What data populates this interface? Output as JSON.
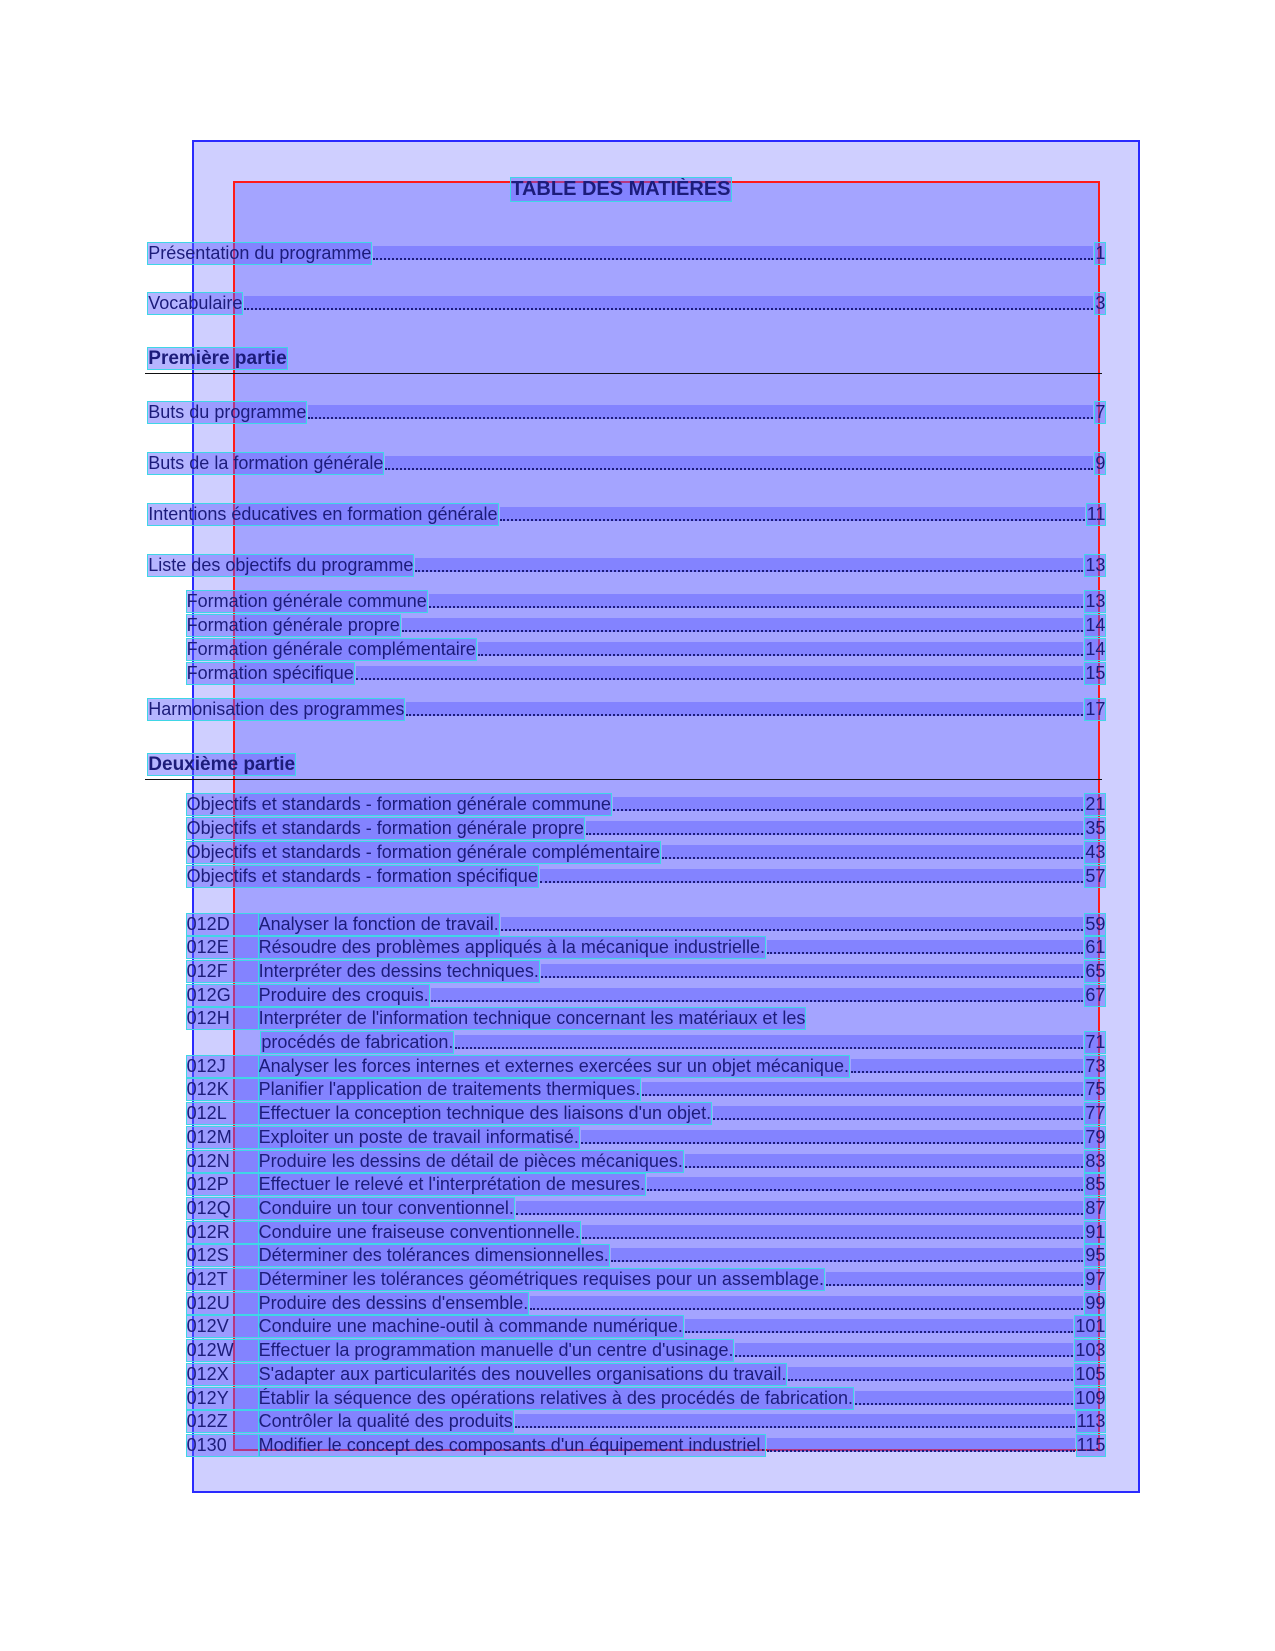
{
  "title": "TABLE DES MATIÈRES",
  "front": [
    {
      "text": "Présentation du programme",
      "page": "1"
    },
    {
      "text": "Vocabulaire",
      "page": "3"
    }
  ],
  "part1": {
    "heading": "Première partie",
    "entries": [
      {
        "text": "Buts du programme",
        "page": "7"
      },
      {
        "text": "Buts de la formation générale",
        "page": "9"
      },
      {
        "text": "Intentions éducatives en formation générale",
        "page": "11"
      },
      {
        "text": "Liste des objectifs du programme",
        "page": "13",
        "subentries": [
          {
            "text": "Formation générale commune",
            "page": "13"
          },
          {
            "text": "Formation générale propre",
            "page": "14"
          },
          {
            "text": "Formation générale complémentaire",
            "page": "14"
          },
          {
            "text": "Formation spécifique",
            "page": "15"
          }
        ]
      },
      {
        "text": "Harmonisation des programmes",
        "page": "17"
      }
    ]
  },
  "part2": {
    "heading": "Deuxième partie",
    "standards": [
      {
        "text": "Objectifs et standards - formation générale commune",
        "page": "21"
      },
      {
        "text": "Objectifs et standards - formation générale propre",
        "page": "35"
      },
      {
        "text": "Objectifs et standards - formation générale complémentaire",
        "page": "43"
      },
      {
        "text": "Objectifs et standards - formation spécifique",
        "page": "57"
      }
    ],
    "competencies": [
      {
        "code": "012D",
        "text": "Analyser la fonction de travail.",
        "page": "59"
      },
      {
        "code": "012E",
        "text": "Résoudre des problèmes appliqués à la mécanique industrielle.",
        "page": "61"
      },
      {
        "code": "012F",
        "text": "Interpréter des dessins techniques.",
        "page": "65"
      },
      {
        "code": "012G",
        "text": "Produire des croquis.",
        "page": "67"
      },
      {
        "code": "012H",
        "text": [
          "Interpréter de l'information technique concernant les matériaux et les",
          "procédés de fabrication."
        ],
        "page": "71"
      },
      {
        "code": "012J",
        "text": "Analyser les forces internes et externes exercées sur un objet mécanique.",
        "page": "73"
      },
      {
        "code": "012K",
        "text": "Planifier l'application de traitements thermiques.",
        "page": "75"
      },
      {
        "code": "012L",
        "text": "Effectuer la conception technique des liaisons d'un objet.",
        "page": "77"
      },
      {
        "code": "012M",
        "text": "Exploiter un poste de travail informatisé.",
        "page": "79"
      },
      {
        "code": "012N",
        "text": "Produire les dessins de détail de pièces mécaniques.",
        "page": "83"
      },
      {
        "code": "012P",
        "text": "Effectuer le relevé et l'interprétation de mesures.",
        "page": "85"
      },
      {
        "code": "012Q",
        "text": "Conduire un tour conventionnel.",
        "page": "87"
      },
      {
        "code": "012R",
        "text": "Conduire une fraiseuse conventionnelle.",
        "page": "91"
      },
      {
        "code": "012S",
        "text": "Déterminer des tolérances dimensionnelles.",
        "page": "95"
      },
      {
        "code": "012T",
        "text": "Déterminer les tolérances géométriques requises pour un assemblage.",
        "page": "97"
      },
      {
        "code": "012U",
        "text": "Produire des dessins d'ensemble.",
        "page": "99"
      },
      {
        "code": "012V",
        "text": "Conduire une machine-outil à commande numérique.",
        "page": "101"
      },
      {
        "code": "012W",
        "text": "Effectuer la programmation manuelle d'un centre d'usinage.",
        "page": "103"
      },
      {
        "code": "012X",
        "text": "S'adapter aux particularités des nouvelles organisations du travail.",
        "page": "105"
      },
      {
        "code": "012Y",
        "text": "Établir la séquence des opérations relatives à des procédés de fabrication.",
        "page": "109"
      },
      {
        "code": "012Z",
        "text": "Contrôler la qualité des produits",
        "page": "113"
      },
      {
        "code": "0130",
        "text": "Modifier le concept des composants d'un équipement industriel.",
        "page": "115"
      }
    ]
  }
}
